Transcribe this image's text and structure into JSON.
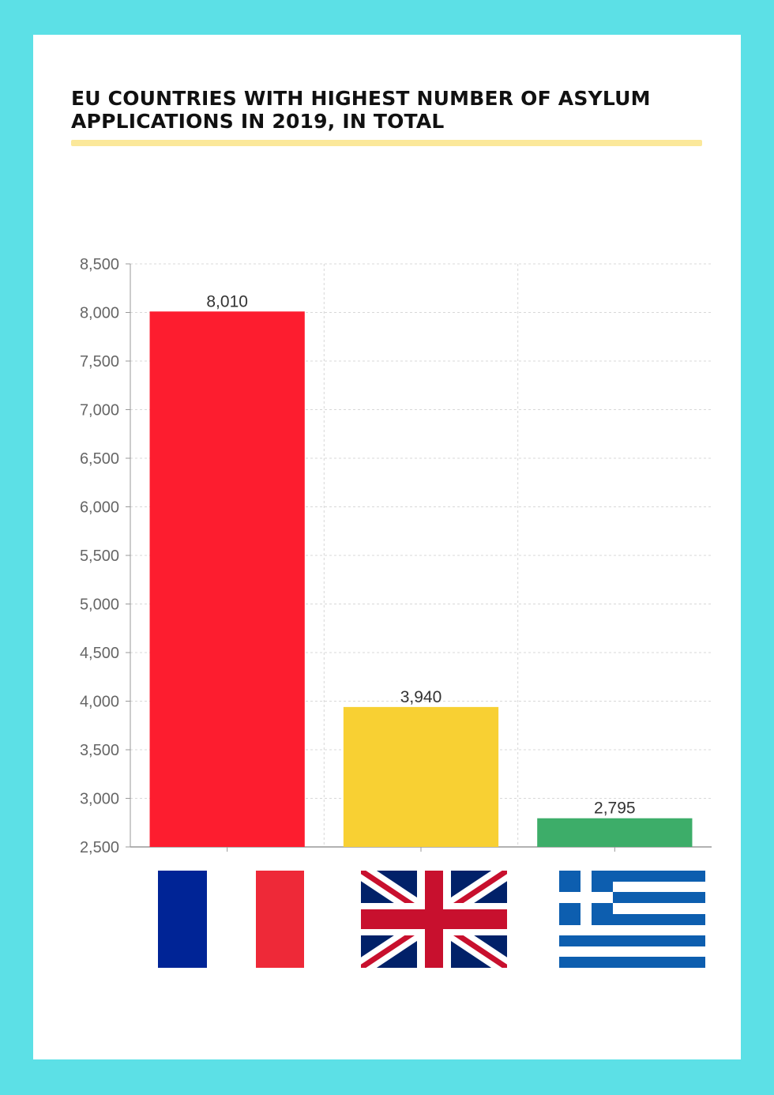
{
  "chart_data": {
    "type": "bar",
    "title": "EU COUNTRIES WITH HIGHEST NUMBER OF ASYLUM APPLICATIONS IN 2019, IN TOTAL",
    "categories": [
      "France",
      "United Kingdom",
      "Greece"
    ],
    "values": [
      8010,
      3940,
      2795
    ],
    "data_labels": [
      "8,010",
      "3,940",
      "2,795"
    ],
    "ylim": [
      2500,
      8500
    ],
    "yticks": [
      2500,
      3000,
      3500,
      4000,
      4500,
      5000,
      5500,
      6000,
      6500,
      7000,
      7500,
      8000,
      8500
    ],
    "ytick_labels": [
      "2,500",
      "3,000",
      "3,500",
      "4,000",
      "4,500",
      "5,000",
      "5,500",
      "6,000",
      "6,500",
      "7,000",
      "7,500",
      "8,000",
      "8,500"
    ],
    "bar_colors": [
      "#fd1d2f",
      "#f8d033",
      "#3dad69"
    ],
    "category_icons": [
      "france-flag-icon",
      "uk-flag-icon",
      "greece-flag-icon"
    ],
    "grid": true,
    "xlabel": "",
    "ylabel": ""
  },
  "colors": {
    "background": "#5ce0e6",
    "card": "#ffffff",
    "title_underline": "#fbe89a"
  }
}
